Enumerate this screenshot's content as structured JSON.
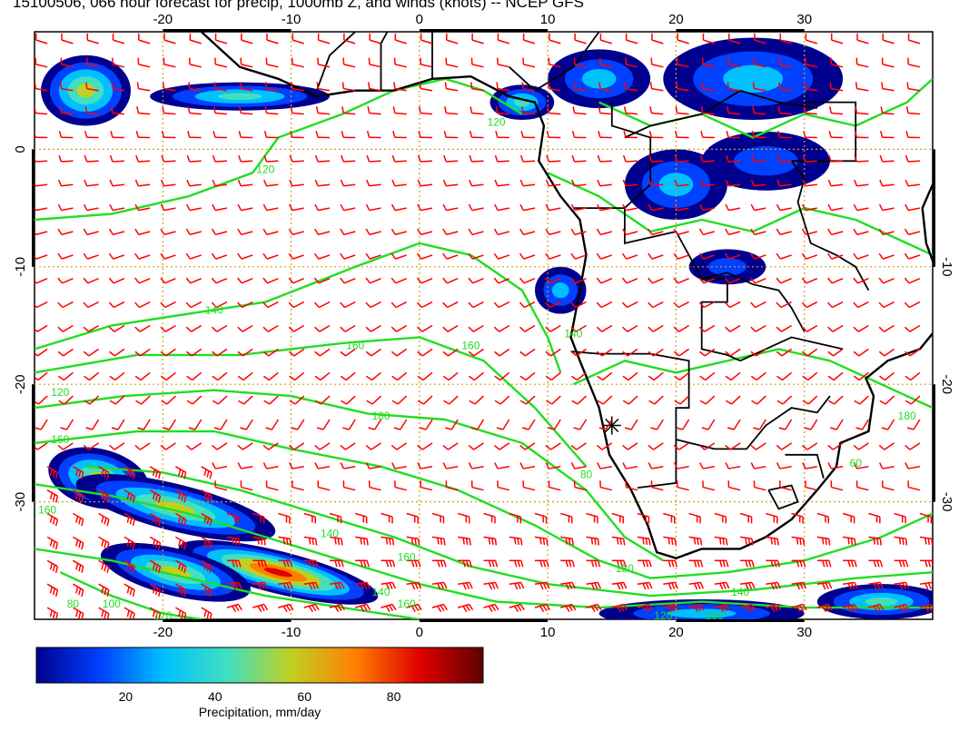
{
  "title": "15100506, 066 hour forecast for precip, 1000mb Z, and winds (knots) -- NCEP GFS",
  "map": {
    "lon_range": [
      -30,
      40
    ],
    "lat_range": [
      -40,
      10
    ],
    "lon_ticks_top": [
      "-20",
      "-10",
      "0",
      "10",
      "20",
      "30"
    ],
    "lon_ticks_bottom": [
      "-20",
      "-10",
      "0",
      "10",
      "20",
      "30"
    ],
    "lat_ticks_left": [
      "0",
      "-10",
      "-20",
      "-30"
    ],
    "lat_ticks_right": [
      "-10",
      "-20",
      "-30"
    ],
    "gridline_color": "#d4a017",
    "contour_color": "#22dd22",
    "barb_color": "#ff0000",
    "coast_color": "#000000",
    "contour_labels": [
      {
        "text": "120",
        "lon": 6,
        "lat": 2
      },
      {
        "text": "120",
        "lon": -12,
        "lat": -2
      },
      {
        "text": "140",
        "lon": -16,
        "lat": -14
      },
      {
        "text": "160",
        "lon": -5,
        "lat": -17
      },
      {
        "text": "160",
        "lon": 4,
        "lat": -17
      },
      {
        "text": "140",
        "lon": 12,
        "lat": -16
      },
      {
        "text": "180",
        "lon": -3,
        "lat": -23
      },
      {
        "text": "180",
        "lon": 38,
        "lat": -23
      },
      {
        "text": "120",
        "lon": -28,
        "lat": -21
      },
      {
        "text": "160",
        "lon": -28,
        "lat": -25
      },
      {
        "text": "160",
        "lon": -29,
        "lat": -31
      },
      {
        "text": "140",
        "lon": -7,
        "lat": -33
      },
      {
        "text": "160",
        "lon": -1,
        "lat": -35
      },
      {
        "text": "140",
        "lon": -3,
        "lat": -38
      },
      {
        "text": "160",
        "lon": -1,
        "lat": -39
      },
      {
        "text": "80",
        "lon": 13,
        "lat": -28
      },
      {
        "text": "180",
        "lon": 16,
        "lat": -36
      },
      {
        "text": "140",
        "lon": 25,
        "lat": -38
      },
      {
        "text": "120",
        "lon": 19,
        "lat": -40
      },
      {
        "text": "100",
        "lon": 23,
        "lat": -40
      },
      {
        "text": "80",
        "lon": -27,
        "lat": -39
      },
      {
        "text": "100",
        "lon": -24,
        "lat": -39
      },
      {
        "text": "120",
        "lon": -20,
        "lat": -40
      },
      {
        "text": "60",
        "lon": 34,
        "lat": -27
      }
    ],
    "precip_areas": [
      {
        "lon": -26,
        "lat": 5,
        "rx": 3.5,
        "ry": 3,
        "level": 0.55
      },
      {
        "lon": -14,
        "lat": 4.5,
        "rx": 7,
        "ry": 1.2,
        "level": 0.4
      },
      {
        "lon": 8,
        "lat": 4,
        "rx": 2.5,
        "ry": 1.5,
        "level": 0.45
      },
      {
        "lon": 14,
        "lat": 6,
        "rx": 4,
        "ry": 2.5,
        "level": 0.3
      },
      {
        "lon": 26,
        "lat": 6,
        "rx": 7,
        "ry": 3.5,
        "level": 0.25
      },
      {
        "lon": 20,
        "lat": -3,
        "rx": 4,
        "ry": 3,
        "level": 0.35
      },
      {
        "lon": 27,
        "lat": -1,
        "rx": 5,
        "ry": 2.5,
        "level": 0.2
      },
      {
        "lon": 11,
        "lat": -12,
        "rx": 2,
        "ry": 2,
        "level": 0.3
      },
      {
        "lon": 24,
        "lat": -10,
        "rx": 3,
        "ry": 1.5,
        "level": 0.2
      },
      {
        "lon": -25,
        "lat": -28,
        "rx": 4,
        "ry": 2.5,
        "level": 0.6
      },
      {
        "lon": -19,
        "lat": -30.5,
        "rx": 8,
        "ry": 2,
        "level": 0.55
      },
      {
        "lon": -11,
        "lat": -36,
        "rx": 8,
        "ry": 1.8,
        "level": 0.9
      },
      {
        "lon": -19,
        "lat": -36,
        "rx": 6,
        "ry": 2,
        "level": 0.5
      },
      {
        "lon": 22,
        "lat": -39.5,
        "rx": 8,
        "ry": 1.2,
        "level": 0.3
      },
      {
        "lon": 36,
        "lat": -38.5,
        "rx": 5,
        "ry": 1.5,
        "level": 0.4
      }
    ]
  },
  "colorbar": {
    "ticks": [
      "20",
      "40",
      "60",
      "80"
    ],
    "tick_values": [
      20,
      40,
      60,
      80
    ],
    "range": [
      0,
      100
    ],
    "label": "Precipitation, mm/day",
    "colors": [
      "#00008f",
      "#0040ff",
      "#00c0ff",
      "#40e0c0",
      "#c0d020",
      "#ff8000",
      "#e00000",
      "#600000"
    ]
  }
}
